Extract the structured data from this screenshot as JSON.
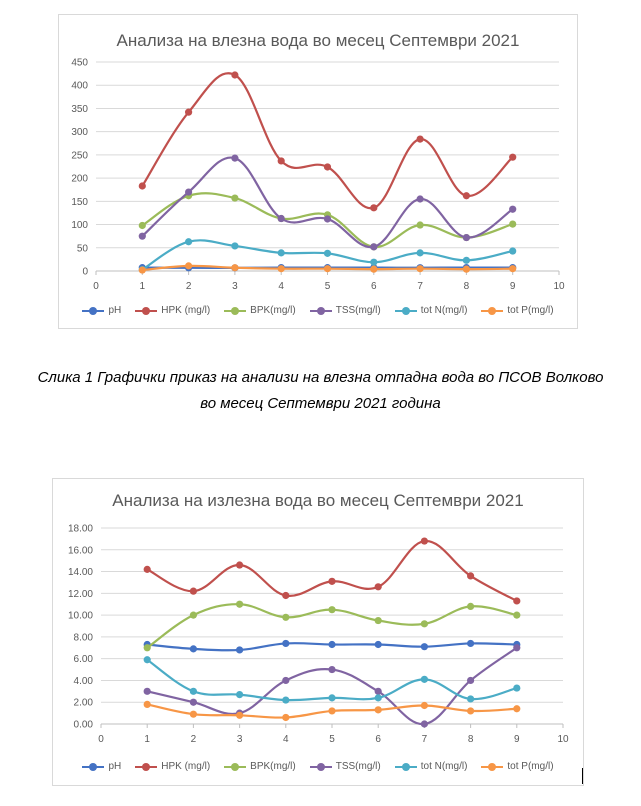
{
  "caption": {
    "line1": "Слика 1 Графички приказ на анализи на влезна отпадна вода во ПСОВ Волково",
    "line2": "во месец Септември 2021 година"
  },
  "chart_data": [
    {
      "type": "line",
      "title": "Анализа на влезна вода во месец Септември 2021",
      "xlim": [
        0,
        10
      ],
      "ylim": [
        0,
        450
      ],
      "xticks": [
        0,
        1,
        2,
        3,
        4,
        5,
        6,
        7,
        8,
        9,
        10
      ],
      "yticks": [
        0,
        50,
        100,
        150,
        200,
        250,
        300,
        350,
        400,
        450
      ],
      "ytick_format": "int",
      "grid": true,
      "legend": "bottom",
      "x": [
        1,
        2,
        3,
        4,
        5,
        6,
        7,
        8,
        9
      ],
      "series": [
        {
          "name": "pH",
          "color": "#4472c4",
          "values": [
            7.3,
            6.9,
            6.8,
            7.4,
            7.3,
            7.3,
            7.1,
            7.4,
            7.3
          ]
        },
        {
          "name": "HPK (mg/l)",
          "color": "#c0504d",
          "values": [
            183,
            342,
            422,
            237,
            224,
            136,
            284,
            162,
            245
          ]
        },
        {
          "name": "BPK(mg/l)",
          "color": "#9bbb59",
          "values": [
            98,
            162,
            157,
            113,
            121,
            52,
            99,
            72,
            101
          ]
        },
        {
          "name": "TSS(mg/l)",
          "color": "#8064a2",
          "values": [
            75,
            170,
            243,
            113,
            112,
            52,
            155,
            72,
            133
          ]
        },
        {
          "name": "tot N(mg/l)",
          "color": "#4bacc6",
          "values": [
            3,
            63,
            54,
            39,
            38,
            19,
            39,
            23,
            43
          ]
        },
        {
          "name": "tot P(mg/l)",
          "color": "#f79646",
          "values": [
            2,
            11,
            7,
            5,
            5,
            4,
            5,
            4,
            5
          ]
        }
      ]
    },
    {
      "type": "line",
      "title": "Анализа на излезна вода во месец Септември 2021",
      "xlim": [
        0,
        10
      ],
      "ylim": [
        0,
        18
      ],
      "xticks": [
        0,
        1,
        2,
        3,
        4,
        5,
        6,
        7,
        8,
        9,
        10
      ],
      "yticks": [
        0,
        2,
        4,
        6,
        8,
        10,
        12,
        14,
        16,
        18
      ],
      "ytick_format": "fixed2",
      "grid": true,
      "legend": "bottom",
      "x": [
        1,
        2,
        3,
        4,
        5,
        6,
        7,
        8,
        9
      ],
      "series": [
        {
          "name": "pH",
          "color": "#4472c4",
          "values": [
            7.3,
            6.9,
            6.8,
            7.4,
            7.3,
            7.3,
            7.1,
            7.4,
            7.3
          ]
        },
        {
          "name": "HPK (mg/l)",
          "color": "#c0504d",
          "values": [
            14.2,
            12.2,
            14.6,
            11.8,
            13.1,
            12.6,
            16.8,
            13.6,
            11.3
          ]
        },
        {
          "name": "BPK(mg/l)",
          "color": "#9bbb59",
          "values": [
            7.0,
            10.0,
            11.0,
            9.8,
            10.5,
            9.5,
            9.2,
            10.8,
            10.0
          ]
        },
        {
          "name": "TSS(mg/l)",
          "color": "#8064a2",
          "values": [
            3.0,
            2.0,
            1.0,
            4.0,
            5.0,
            3.0,
            0.0,
            4.0,
            7.0
          ]
        },
        {
          "name": "tot N(mg/l)",
          "color": "#4bacc6",
          "values": [
            5.9,
            3.0,
            2.7,
            2.2,
            2.4,
            2.4,
            4.1,
            2.3,
            3.3
          ]
        },
        {
          "name": "tot P(mg/l)",
          "color": "#f79646",
          "values": [
            1.8,
            0.9,
            0.8,
            0.6,
            1.2,
            1.3,
            1.7,
            1.2,
            1.4
          ]
        }
      ]
    }
  ]
}
